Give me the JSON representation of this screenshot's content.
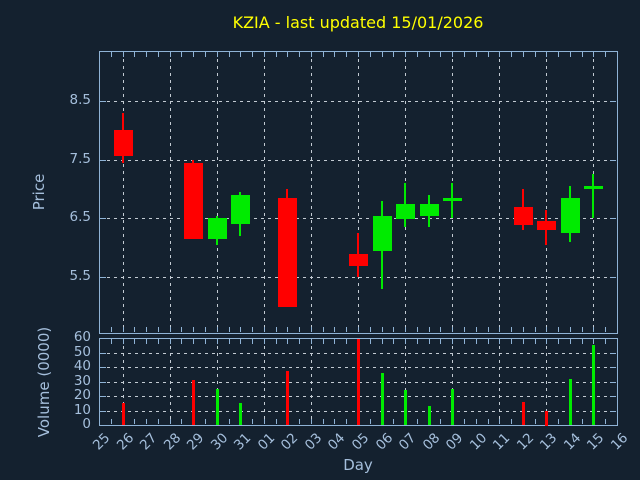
{
  "title": "KZIA - last updated 15/01/2026",
  "axes": {
    "price_label": "Price",
    "volume_label": "Volume (0000)",
    "x_label": "Day"
  },
  "colors": {
    "background": "#14212F",
    "spine": "#8FB3D6",
    "tick_label": "#A5BFDC",
    "grid": "#C3CBD3",
    "up": "#00EB00",
    "down": "#FF0000",
    "title": "#FFFF00"
  },
  "chart_data": {
    "type": "candlestick",
    "title": "KZIA - last updated 15/01/2026",
    "xlabel": "Day",
    "categories": [
      "25",
      "26",
      "27",
      "28",
      "29",
      "30",
      "31",
      "01",
      "02",
      "03",
      "04",
      "05",
      "06",
      "07",
      "08",
      "09",
      "10",
      "11",
      "12",
      "13",
      "14",
      "15",
      "16"
    ],
    "gridline_day_indices": [
      1,
      3,
      5,
      7,
      9,
      11,
      13,
      15,
      17,
      19,
      21
    ],
    "price_axis": {
      "label": "Price",
      "ticks": [
        8.5,
        7.5,
        6.5,
        5.5
      ],
      "ylim": [
        4.55,
        9.35
      ],
      "grid": "dashed"
    },
    "volume_axis": {
      "label": "Volume (0000)",
      "ticks": [
        0,
        10,
        20,
        30,
        40,
        50,
        60
      ],
      "gridline_ticks": [
        10,
        20,
        30,
        40,
        50
      ],
      "ylim": [
        0,
        60
      ]
    },
    "series": [
      {
        "day": "26",
        "open": 8.0,
        "high": 8.3,
        "low": 7.45,
        "close": 7.55,
        "volume": 15,
        "direction": "down"
      },
      {
        "day": "29",
        "open": 7.45,
        "high": 7.5,
        "low": 6.15,
        "close": 6.15,
        "volume": 31,
        "direction": "down"
      },
      {
        "day": "30",
        "open": 6.15,
        "high": 6.55,
        "low": 6.05,
        "close": 6.5,
        "volume": 25,
        "direction": "up"
      },
      {
        "day": "31",
        "open": 6.4,
        "high": 6.95,
        "low": 6.2,
        "close": 6.9,
        "volume": 15,
        "direction": "up"
      },
      {
        "day": "02",
        "open": 6.85,
        "high": 7.0,
        "low": 5.0,
        "close": 5.0,
        "volume": 37,
        "direction": "down"
      },
      {
        "day": "05",
        "open": 5.9,
        "high": 6.25,
        "low": 5.5,
        "close": 5.7,
        "volume": 59,
        "direction": "down"
      },
      {
        "day": "06",
        "open": 5.95,
        "high": 6.8,
        "low": 5.3,
        "close": 6.55,
        "volume": 36,
        "direction": "up"
      },
      {
        "day": "07",
        "open": 6.5,
        "high": 7.1,
        "low": 6.35,
        "close": 6.75,
        "volume": 24,
        "direction": "up"
      },
      {
        "day": "08",
        "open": 6.55,
        "high": 6.9,
        "low": 6.35,
        "close": 6.75,
        "volume": 13,
        "direction": "up"
      },
      {
        "day": "09",
        "open": 6.8,
        "high": 7.1,
        "low": 6.5,
        "close": 6.8,
        "volume": 25,
        "direction": "up"
      },
      {
        "day": "12",
        "open": 6.7,
        "high": 7.0,
        "low": 6.3,
        "close": 6.4,
        "volume": 16,
        "direction": "down"
      },
      {
        "day": "13",
        "open": 6.45,
        "high": 6.65,
        "low": 6.05,
        "close": 6.3,
        "volume": 10,
        "direction": "down"
      },
      {
        "day": "14",
        "open": 6.25,
        "high": 7.05,
        "low": 6.1,
        "close": 6.85,
        "volume": 32,
        "direction": "up"
      },
      {
        "day": "15",
        "open": 7.0,
        "high": 7.25,
        "low": 6.5,
        "close": 7.0,
        "volume": 55,
        "direction": "up"
      }
    ],
    "no_data_days": [
      "25",
      "27",
      "28",
      "01",
      "03",
      "04",
      "10",
      "11",
      "16"
    ]
  }
}
